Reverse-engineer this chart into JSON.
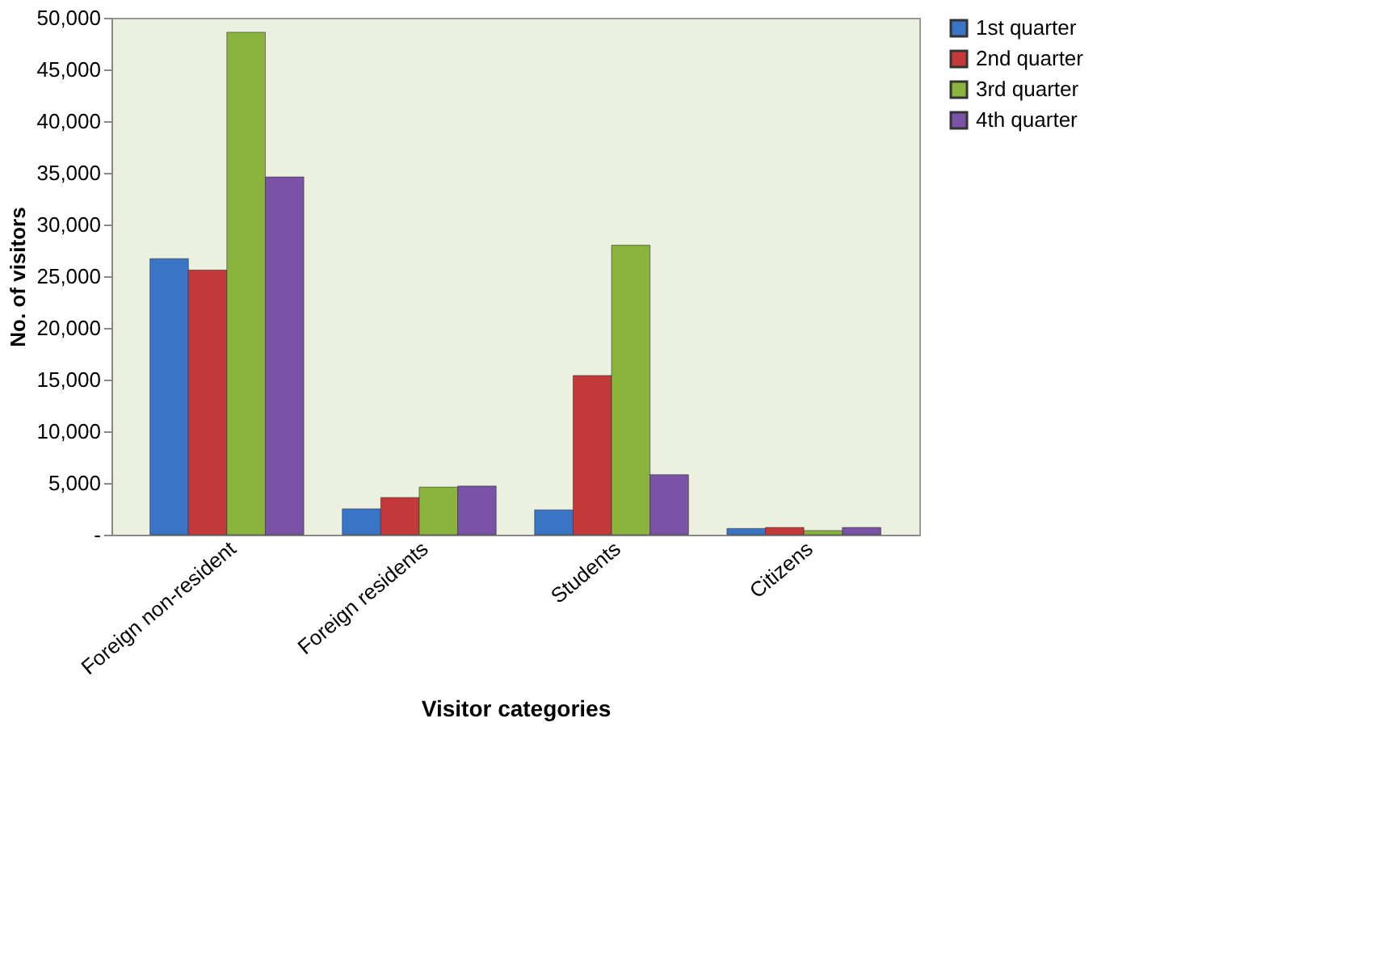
{
  "chart_data": {
    "type": "bar",
    "xlabel": "Visitor categories",
    "ylabel": "No. of visitors",
    "categories": [
      "Foreign non-resident",
      "Foreign residents",
      "Students",
      "Citizens"
    ],
    "series": [
      {
        "name": "1st quarter",
        "color": "#3a74c4",
        "values": [
          26700,
          2500,
          2400,
          600
        ]
      },
      {
        "name": "2nd quarter",
        "color": "#c43a3a",
        "values": [
          25600,
          3600,
          15400,
          700
        ]
      },
      {
        "name": "3rd quarter",
        "color": "#8ab43c",
        "values": [
          48600,
          4600,
          28000,
          400
        ]
      },
      {
        "name": "4th quarter",
        "color": "#7a52a6",
        "values": [
          34600,
          4700,
          5800,
          700
        ]
      }
    ],
    "ylim": [
      0,
      50000
    ],
    "yticks": [
      {
        "value": 0,
        "label": "-"
      },
      {
        "value": 5000,
        "label": "5,000"
      },
      {
        "value": 10000,
        "label": "10,000"
      },
      {
        "value": 15000,
        "label": "15,000"
      },
      {
        "value": 20000,
        "label": "20,000"
      },
      {
        "value": 25000,
        "label": "25,000"
      },
      {
        "value": 30000,
        "label": "30,000"
      },
      {
        "value": 35000,
        "label": "35,000"
      },
      {
        "value": 40000,
        "label": "40,000"
      },
      {
        "value": 45000,
        "label": "45,000"
      },
      {
        "value": 50000,
        "label": "50,000"
      }
    ],
    "grid": false,
    "legend": "right"
  }
}
